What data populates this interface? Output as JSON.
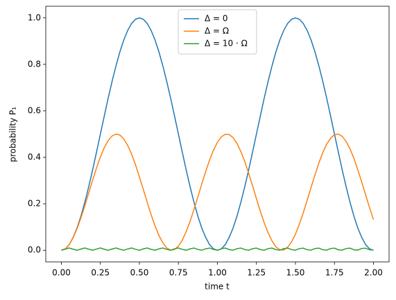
{
  "chart_data": {
    "type": "line",
    "x_label": "time t",
    "y_label": "probability P₁",
    "x": [
      0,
      0.025,
      0.05,
      0.075,
      0.1,
      0.125,
      0.15,
      0.175,
      0.2,
      0.225,
      0.25,
      0.275,
      0.3,
      0.325,
      0.35,
      0.375,
      0.4,
      0.425,
      0.45,
      0.475,
      0.5,
      0.525,
      0.55,
      0.575,
      0.6,
      0.625,
      0.65,
      0.675,
      0.7,
      0.725,
      0.75,
      0.775,
      0.8,
      0.825,
      0.85,
      0.875,
      0.9,
      0.925,
      0.95,
      0.975,
      1,
      1.025,
      1.05,
      1.075,
      1.1,
      1.125,
      1.15,
      1.175,
      1.2,
      1.225,
      1.25,
      1.275,
      1.3,
      1.325,
      1.35,
      1.375,
      1.4,
      1.425,
      1.45,
      1.475,
      1.5,
      1.525,
      1.55,
      1.575,
      1.6,
      1.625,
      1.65,
      1.675,
      1.7,
      1.725,
      1.75,
      1.775,
      1.8,
      1.825,
      1.85,
      1.875,
      1.9,
      1.925,
      1.95,
      1.975,
      2
    ],
    "series": [
      {
        "name": "Δ = 0",
        "color": "#1f77b4",
        "values": [
          0,
          0.006,
          0.024,
          0.055,
          0.095,
          0.146,
          0.206,
          0.273,
          0.345,
          0.422,
          0.5,
          0.578,
          0.655,
          0.727,
          0.794,
          0.854,
          0.905,
          0.946,
          0.976,
          0.994,
          1,
          0.994,
          0.976,
          0.946,
          0.905,
          0.854,
          0.794,
          0.727,
          0.655,
          0.578,
          0.5,
          0.422,
          0.345,
          0.273,
          0.206,
          0.146,
          0.095,
          0.055,
          0.024,
          0.006,
          0,
          0.006,
          0.024,
          0.055,
          0.095,
          0.146,
          0.206,
          0.273,
          0.345,
          0.422,
          0.5,
          0.578,
          0.655,
          0.727,
          0.794,
          0.854,
          0.905,
          0.946,
          0.976,
          0.994,
          1,
          0.994,
          0.976,
          0.946,
          0.905,
          0.854,
          0.794,
          0.727,
          0.655,
          0.578,
          0.5,
          0.422,
          0.345,
          0.273,
          0.206,
          0.146,
          0.095,
          0.055,
          0.024,
          0.006,
          0
        ]
      },
      {
        "name": "Δ = Ω",
        "color": "#ff7f0e",
        "values": [
          0,
          0.006,
          0.024,
          0.054,
          0.092,
          0.139,
          0.191,
          0.246,
          0.301,
          0.354,
          0.401,
          0.442,
          0.472,
          0.492,
          0.5,
          0.496,
          0.479,
          0.451,
          0.414,
          0.368,
          0.316,
          0.262,
          0.207,
          0.153,
          0.105,
          0.064,
          0.032,
          0.01,
          0.0005,
          0.003,
          0.018,
          0.044,
          0.08,
          0.125,
          0.176,
          0.23,
          0.286,
          0.339,
          0.389,
          0.431,
          0.465,
          0.488,
          0.499,
          0.498,
          0.485,
          0.46,
          0.425,
          0.382,
          0.332,
          0.278,
          0.222,
          0.168,
          0.118,
          0.075,
          0.04,
          0.015,
          0.002,
          0.001,
          0.013,
          0.036,
          0.069,
          0.112,
          0.161,
          0.215,
          0.27,
          0.324,
          0.375,
          0.42,
          0.456,
          0.482,
          0.497,
          0.5,
          0.49,
          0.468,
          0.436,
          0.395,
          0.346,
          0.293,
          0.238,
          0.183,
          0.132
        ]
      },
      {
        "name": "Δ = 10 · Ω",
        "color": "#2ca02c",
        "values": [
          0,
          0.005,
          0.0099,
          0.0048,
          0,
          0.0051,
          0.0099,
          0.0047,
          0,
          0.0053,
          0.0099,
          0.0045,
          0,
          0.0055,
          0.0099,
          0.0044,
          0,
          0.0056,
          0.0099,
          0.0042,
          0.0001,
          0.0058,
          0.0098,
          0.0041,
          0.0001,
          0.0059,
          0.0098,
          0.0039,
          0.0001,
          0.0061,
          0.0098,
          0.0038,
          0.0002,
          0.0062,
          0.0097,
          0.0036,
          0.0002,
          0.0064,
          0.0097,
          0.0035,
          0.0002,
          0.0065,
          0.0096,
          0.0033,
          0.0003,
          0.0067,
          0.0096,
          0.0032,
          0.0003,
          0.0068,
          0.0095,
          0.003,
          0.0004,
          0.007,
          0.0095,
          0.0029,
          0.0005,
          0.0071,
          0.0094,
          0.0027,
          0.0005,
          0.0072,
          0.0093,
          0.0026,
          0.0006,
          0.0074,
          0.0093,
          0.0025,
          0.0007,
          0.0075,
          0.0092,
          0.0023,
          0.0008,
          0.0076,
          0.0091,
          0.0022,
          0.0009,
          0.0078,
          0.009,
          0.0021,
          0.0009
        ]
      }
    ],
    "xlim": [
      -0.1,
      2.1
    ],
    "ylim": [
      -0.05,
      1.05
    ],
    "xticks": [
      {
        "value": 0,
        "label": "0.00"
      },
      {
        "value": 0.25,
        "label": "0.25"
      },
      {
        "value": 0.5,
        "label": "0.50"
      },
      {
        "value": 0.75,
        "label": "0.75"
      },
      {
        "value": 1,
        "label": "1.00"
      },
      {
        "value": 1.25,
        "label": "1.25"
      },
      {
        "value": 1.5,
        "label": "1.50"
      },
      {
        "value": 1.75,
        "label": "1.75"
      },
      {
        "value": 2,
        "label": "2.00"
      }
    ],
    "yticks": [
      {
        "value": 0,
        "label": "0.0"
      },
      {
        "value": 0.2,
        "label": "0.2"
      },
      {
        "value": 0.4,
        "label": "0.4"
      },
      {
        "value": 0.6,
        "label": "0.6"
      },
      {
        "value": 0.8,
        "label": "0.8"
      },
      {
        "value": 1,
        "label": "1.0"
      }
    ],
    "legend": "upper center",
    "grid": false
  }
}
